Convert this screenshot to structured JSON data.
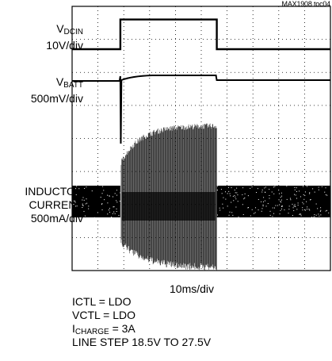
{
  "figure_id": "MAX1908 toc04",
  "chart_data": {
    "type": "line",
    "title": "",
    "grid": "10 x 8 divisions",
    "channels": [
      {
        "label_main": "V",
        "label_sub": "DCIN",
        "scale": "10V/div"
      },
      {
        "label_main": "V",
        "label_sub": "BATT",
        "scale": "500mV/div"
      },
      {
        "label_lines": [
          "INDUCTOR",
          "CURRENT"
        ],
        "scale": "500mA/div"
      }
    ],
    "xlabel": "10ms/div",
    "step_on_ms": 0,
    "step_off_ms": 56,
    "x_range_ms": [
      -28,
      122
    ],
    "series": [
      {
        "name": "VDCIN",
        "x": [
          -28,
          0,
          0,
          56,
          56,
          122
        ],
        "y": [
          18.5,
          18.5,
          27.5,
          27.5,
          18.5,
          18.5
        ]
      }
    ]
  },
  "conditions": {
    "ictl": "ICTL = LDO",
    "vctl": "VCTL = LDO",
    "icharge_main": "I",
    "icharge_sub": "CHARGE",
    "icharge_val": " = 3A",
    "line_step": "LINE STEP 18.5V TO 27.5V"
  }
}
